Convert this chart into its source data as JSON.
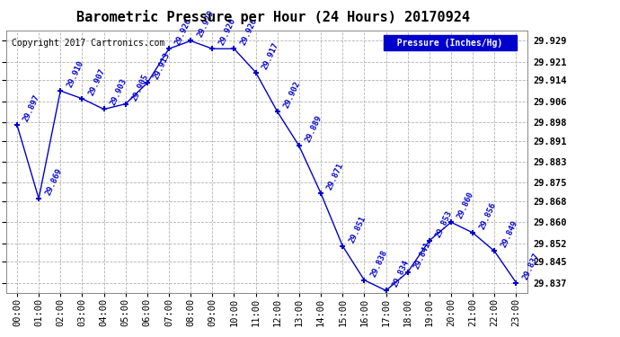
{
  "hours": [
    "00:00",
    "01:00",
    "02:00",
    "03:00",
    "04:00",
    "05:00",
    "06:00",
    "07:00",
    "08:00",
    "09:00",
    "10:00",
    "11:00",
    "12:00",
    "13:00",
    "14:00",
    "15:00",
    "16:00",
    "17:00",
    "18:00",
    "19:00",
    "20:00",
    "21:00",
    "22:00",
    "23:00"
  ],
  "values": [
    29.897,
    29.869,
    29.91,
    29.907,
    29.903,
    29.905,
    29.913,
    29.926,
    29.929,
    29.926,
    29.926,
    29.917,
    29.902,
    29.889,
    29.871,
    29.851,
    29.838,
    29.834,
    29.841,
    29.853,
    29.86,
    29.856,
    29.849,
    29.837
  ],
  "title": "Barometric Pressure per Hour (24 Hours) 20170924",
  "ylabel": "Pressure (Inches/Hg)",
  "copyright_text": "Copyright 2017 Cartronics.com",
  "line_color": "#0000cc",
  "marker_color": "#0000cc",
  "label_color": "#0000cc",
  "grid_color": "#aaaaaa",
  "background_color": "#ffffff",
  "legend_bg": "#0000cc",
  "legend_text_color": "#ffffff",
  "ytick_values": [
    29.837,
    29.845,
    29.852,
    29.86,
    29.868,
    29.875,
    29.883,
    29.891,
    29.898,
    29.906,
    29.914,
    29.921,
    29.929
  ],
  "ylim_min": 29.833,
  "ylim_max": 29.933,
  "title_fontsize": 11,
  "label_fontsize": 6.5,
  "tick_fontsize": 7.5,
  "copyright_fontsize": 7
}
